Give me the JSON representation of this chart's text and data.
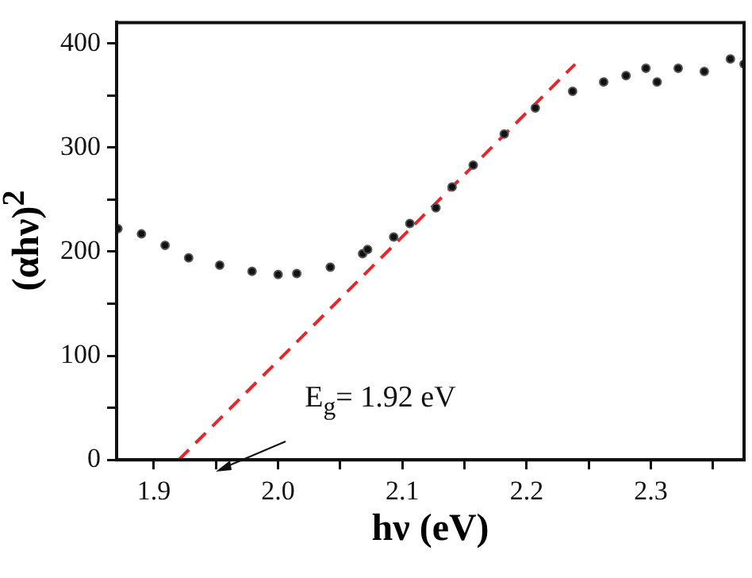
{
  "chart_data": {
    "type": "scatter",
    "xlabel": "hν (eV)",
    "ylabel": "(αhν)$^{2}$",
    "xlim": [
      1.87,
      2.375
    ],
    "xticks": [
      1.9,
      {
        "value": 1.95,
        "label": null
      },
      {
        "value": 2.0,
        "label": "2.0"
      },
      {
        "value": 2.05,
        "label": null
      },
      2.1,
      {
        "value": 2.15,
        "label": null
      },
      2.2,
      {
        "value": 2.25,
        "label": null
      },
      2.3,
      {
        "value": 2.35,
        "label": null
      }
    ],
    "ylim": [
      0,
      420
    ],
    "yticks": [
      0,
      {
        "value": 50,
        "label": null
      },
      100,
      {
        "value": 150,
        "label": null
      },
      200,
      {
        "value": 250,
        "label": null
      },
      300,
      {
        "value": 350,
        "label": null
      },
      400
    ],
    "grid": false,
    "legend": false,
    "marker": "circle",
    "annotations": [
      "E$_{g}$= 1.92 eV"
    ],
    "series": [
      {
        "color": "#111111",
        "x": [
          1.871,
          1.89,
          1.909,
          1.928,
          1.953,
          1.979,
          2.0,
          2.015,
          2.042,
          2.068,
          2.072,
          2.093,
          2.106,
          2.127,
          2.14,
          2.157,
          2.182,
          2.207,
          2.237,
          2.262,
          2.28,
          2.296,
          2.305,
          2.322,
          2.343,
          2.364,
          2.375
        ],
        "values": [
          222,
          217,
          206,
          194,
          187,
          181,
          178,
          179,
          185,
          198,
          202,
          214,
          227,
          242,
          262,
          283,
          313,
          338,
          354,
          363,
          369,
          376,
          363,
          376,
          373,
          385,
          380
        ]
      },
      {
        "type": "line",
        "color": "#e8262a",
        "line_style": "dashed",
        "marker": "none",
        "x": [
          1.92,
          2.239
        ],
        "values": [
          0,
          380
        ]
      }
    ]
  }
}
